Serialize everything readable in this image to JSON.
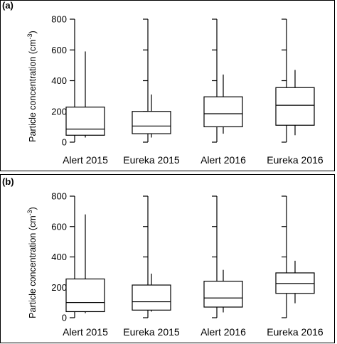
{
  "chart_data": [
    {
      "type": "box",
      "panel_label": "(a)",
      "ylabel": "Particle concentration (cm",
      "ylabel_sup": "-3",
      "ylabel_end": ")",
      "ylim": [
        0,
        800
      ],
      "yticks": [
        0,
        200,
        400,
        600,
        800
      ],
      "categories": [
        "Alert 2015",
        "Eureka 2015",
        "Alert 2016",
        "Eureka 2016"
      ],
      "boxes": [
        {
          "min": 30,
          "q1": 45,
          "median": 85,
          "q3": 228,
          "max": 590
        },
        {
          "min": 30,
          "q1": 55,
          "median": 105,
          "q3": 200,
          "max": 310
        },
        {
          "min": 55,
          "q1": 100,
          "median": 185,
          "q3": 295,
          "max": 440
        },
        {
          "min": 45,
          "q1": 110,
          "median": 240,
          "q3": 355,
          "max": 470
        }
      ]
    },
    {
      "type": "box",
      "panel_label": "(b)",
      "ylabel": "Particle concentration (cm",
      "ylabel_sup": "-3",
      "ylabel_end": ")",
      "ylim": [
        0,
        800
      ],
      "yticks": [
        0,
        200,
        400,
        600,
        800
      ],
      "categories": [
        "Alert 2015",
        "Eureka 2015",
        "Alert 2016",
        "Eureka 2016"
      ],
      "boxes": [
        {
          "min": 30,
          "q1": 40,
          "median": 100,
          "q3": 255,
          "max": 680
        },
        {
          "min": 40,
          "q1": 50,
          "median": 105,
          "q3": 215,
          "max": 290
        },
        {
          "min": 35,
          "q1": 70,
          "median": 130,
          "q3": 240,
          "max": 315
        },
        {
          "min": 95,
          "q1": 160,
          "median": 225,
          "q3": 295,
          "max": 375
        }
      ]
    }
  ]
}
